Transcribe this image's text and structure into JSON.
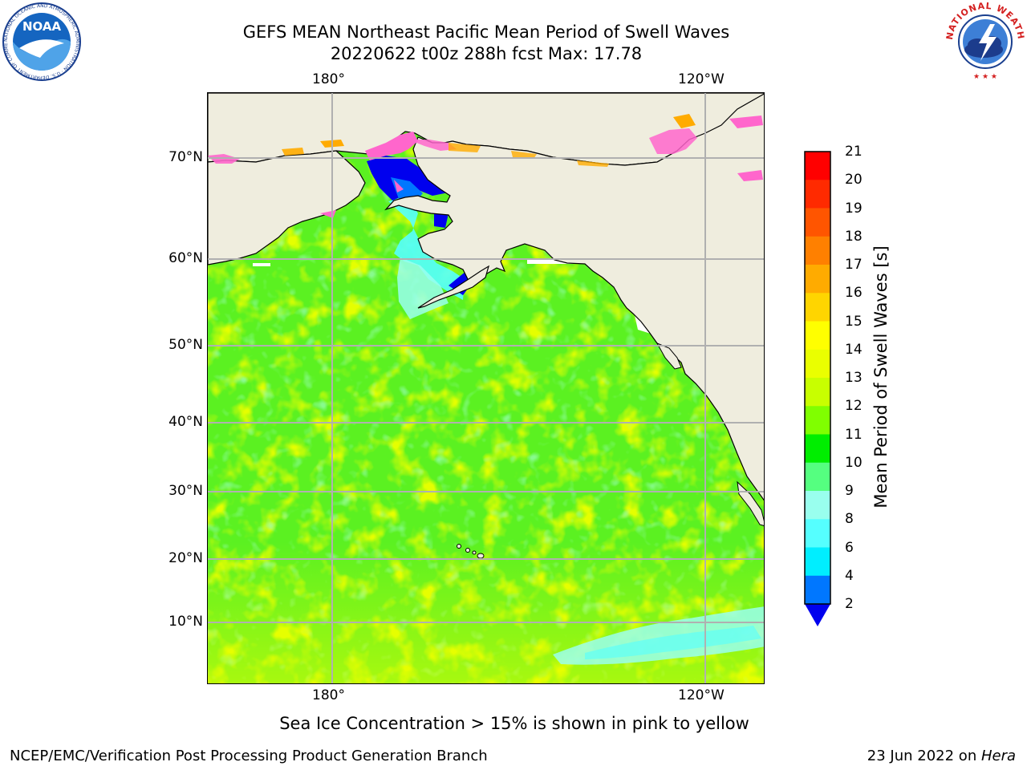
{
  "title": {
    "line1": "GEFS MEAN Northeast Pacific Mean Period of Swell Waves",
    "line2": "20220622 t00z 288h fcst   Max: 17.78"
  },
  "logos": {
    "left": {
      "icon": "noaa-logo",
      "text": "NOAA",
      "ring_text": "NATIONAL OCEANIC AND ATMOSPHERIC ADMINISTRATION · U.S. DEPARTMENT OF COMMERCE"
    },
    "right": {
      "icon": "nws-logo",
      "ring_text": "NATIONAL WEATHER SERVICE"
    }
  },
  "map": {
    "lon_labels_top": [
      "180°",
      "120°W"
    ],
    "lon_labels_bottom": [
      "180°",
      "120°W"
    ],
    "lat_labels": [
      "70°N",
      "60°N",
      "50°N",
      "40°N",
      "30°N",
      "20°N",
      "10°N"
    ],
    "land_color": "#efedde",
    "gridline_color": "#b0b0b0"
  },
  "colorbar": {
    "label": "Mean Period of Swell Waves [s]",
    "ticks": [
      "21",
      "20",
      "19",
      "18",
      "17",
      "16",
      "15",
      "14",
      "13",
      "12",
      "11",
      "10",
      "9",
      "8",
      "6",
      "4",
      "2"
    ],
    "colors": [
      "#ff0000",
      "#ff2a00",
      "#ff5500",
      "#ff8000",
      "#ffab00",
      "#ffd500",
      "#ffff00",
      "#eaff00",
      "#c8ff00",
      "#80ff00",
      "#00ee00",
      "#55ff80",
      "#99ffee",
      "#55ffff",
      "#00eeff",
      "#0077ff",
      "#0000ee"
    ]
  },
  "note": "Sea Ice Concentration > 15% is shown in pink to yellow",
  "footer": {
    "left": "NCEP/EMC/Verification Post Processing Product Generation Branch",
    "right_date": "23 Jun 2022 on ",
    "right_host": "Hera"
  }
}
